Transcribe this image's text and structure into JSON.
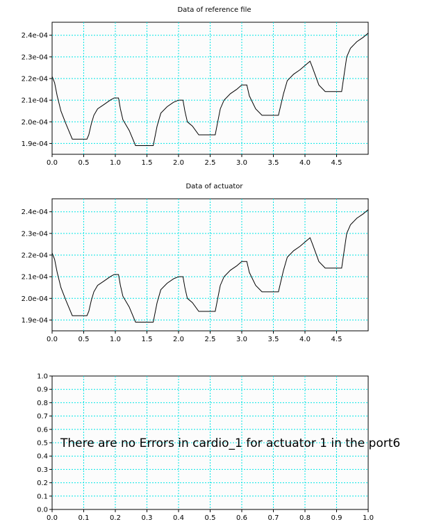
{
  "chart_data": [
    {
      "type": "line",
      "title": "Data of reference file",
      "xlabel": "",
      "ylabel": "",
      "xlim": [
        0,
        5
      ],
      "ylim": [
        0.000185,
        0.000246
      ],
      "xticks": [
        "0.0",
        "0.5",
        "1.0",
        "1.5",
        "2.0",
        "2.5",
        "3.0",
        "3.5",
        "4.0",
        "4.5"
      ],
      "xtick_values": [
        0,
        0.5,
        1,
        1.5,
        2,
        2.5,
        3,
        3.5,
        4,
        4.5
      ],
      "yticks": [
        "1.9e-04",
        "2.0e-04",
        "2.1e-04",
        "2.2e-04",
        "2.3e-04",
        "2.4e-04"
      ],
      "ytick_values": [
        0.00019,
        0.0002,
        0.00021,
        0.00022,
        0.00023,
        0.00024
      ],
      "grid": true,
      "series": [
        {
          "x": [
            0,
            0.04,
            0.08,
            0.14,
            0.22,
            0.32,
            0.55,
            0.58,
            0.62,
            0.66,
            0.72,
            0.82,
            0.92,
            0.98,
            1.05,
            1.08,
            1.12,
            1.22,
            1.32,
            1.6,
            1.62,
            1.66,
            1.72,
            1.82,
            1.92,
            2.0,
            2.07,
            2.1,
            2.14,
            2.22,
            2.32,
            2.58,
            2.62,
            2.66,
            2.72,
            2.82,
            2.92,
            3.0,
            3.08,
            3.12,
            3.22,
            3.32,
            3.58,
            3.62,
            3.66,
            3.72,
            3.82,
            3.92,
            4.0,
            4.08,
            4.12,
            4.22,
            4.32,
            4.58,
            4.62,
            4.66,
            4.72,
            4.82,
            4.92,
            5.0
          ],
          "values": [
            0.000221,
            0.000218,
            0.000212,
            0.000205,
            0.000199,
            0.000192,
            0.000192,
            0.000194,
            0.000199,
            0.000203,
            0.000206,
            0.000208,
            0.00021,
            0.000211,
            0.000211,
            0.000206,
            0.000201,
            0.000196,
            0.000189,
            0.000189,
            0.000192,
            0.000198,
            0.000204,
            0.000207,
            0.000209,
            0.00021,
            0.00021,
            0.000205,
            0.0002,
            0.000198,
            0.000194,
            0.000194,
            0.0002,
            0.000206,
            0.00021,
            0.000213,
            0.000215,
            0.000217,
            0.000217,
            0.000212,
            0.000206,
            0.000203,
            0.000203,
            0.000208,
            0.000213,
            0.000219,
            0.000222,
            0.000224,
            0.000226,
            0.000228,
            0.000225,
            0.000217,
            0.000214,
            0.000214,
            0.000222,
            0.00023,
            0.000234,
            0.000237,
            0.000239,
            0.000241
          ]
        }
      ]
    },
    {
      "type": "line",
      "title": "Data of actuator",
      "xlabel": "",
      "ylabel": "",
      "xlim": [
        0,
        5
      ],
      "ylim": [
        0.000185,
        0.000246
      ],
      "xticks": [
        "0.0",
        "0.5",
        "1.0",
        "1.5",
        "2.0",
        "2.5",
        "3.0",
        "3.5",
        "4.0",
        "4.5"
      ],
      "xtick_values": [
        0,
        0.5,
        1,
        1.5,
        2,
        2.5,
        3,
        3.5,
        4,
        4.5
      ],
      "yticks": [
        "1.9e-04",
        "2.0e-04",
        "2.1e-04",
        "2.2e-04",
        "2.3e-04",
        "2.4e-04"
      ],
      "ytick_values": [
        0.00019,
        0.0002,
        0.00021,
        0.00022,
        0.00023,
        0.00024
      ],
      "grid": true,
      "series": [
        {
          "x": [
            0,
            0.04,
            0.08,
            0.14,
            0.22,
            0.32,
            0.55,
            0.58,
            0.62,
            0.66,
            0.72,
            0.82,
            0.92,
            0.98,
            1.05,
            1.08,
            1.12,
            1.22,
            1.32,
            1.6,
            1.62,
            1.66,
            1.72,
            1.82,
            1.92,
            2.0,
            2.07,
            2.1,
            2.14,
            2.22,
            2.32,
            2.58,
            2.62,
            2.66,
            2.72,
            2.82,
            2.92,
            3.0,
            3.08,
            3.12,
            3.22,
            3.32,
            3.58,
            3.62,
            3.66,
            3.72,
            3.82,
            3.92,
            4.0,
            4.08,
            4.12,
            4.22,
            4.32,
            4.58,
            4.62,
            4.66,
            4.72,
            4.82,
            4.92,
            5.0
          ],
          "values": [
            0.000221,
            0.000218,
            0.000212,
            0.000205,
            0.000199,
            0.000192,
            0.000192,
            0.000194,
            0.000199,
            0.000203,
            0.000206,
            0.000208,
            0.00021,
            0.000211,
            0.000211,
            0.000206,
            0.000201,
            0.000196,
            0.000189,
            0.000189,
            0.000192,
            0.000198,
            0.000204,
            0.000207,
            0.000209,
            0.00021,
            0.00021,
            0.000205,
            0.0002,
            0.000198,
            0.000194,
            0.000194,
            0.0002,
            0.000206,
            0.00021,
            0.000213,
            0.000215,
            0.000217,
            0.000217,
            0.000212,
            0.000206,
            0.000203,
            0.000203,
            0.000208,
            0.000213,
            0.000219,
            0.000222,
            0.000224,
            0.000226,
            0.000228,
            0.000225,
            0.000217,
            0.000214,
            0.000214,
            0.000222,
            0.00023,
            0.000234,
            0.000237,
            0.000239,
            0.000241
          ]
        }
      ]
    },
    {
      "type": "line",
      "title": "",
      "xlabel": "",
      "ylabel": "",
      "xlim": [
        0,
        1
      ],
      "ylim": [
        0,
        1
      ],
      "xticks": [
        "0.0",
        "0.1",
        "0.2",
        "0.3",
        "0.4",
        "0.5",
        "0.6",
        "0.7",
        "0.8",
        "0.9",
        "1.0"
      ],
      "xtick_values": [
        0,
        0.1,
        0.2,
        0.3,
        0.4,
        0.5,
        0.6,
        0.7,
        0.8,
        0.9,
        1.0
      ],
      "yticks": [
        "0.0",
        "0.1",
        "0.2",
        "0.3",
        "0.4",
        "0.5",
        "0.6",
        "0.7",
        "0.8",
        "0.9",
        "1.0"
      ],
      "ytick_values": [
        0,
        0.1,
        0.2,
        0.3,
        0.4,
        0.5,
        0.6,
        0.7,
        0.8,
        0.9,
        1.0
      ],
      "grid": true,
      "annotation": "There are no Errors in cardio_1 for actuator 1 in the port6",
      "series": []
    }
  ]
}
